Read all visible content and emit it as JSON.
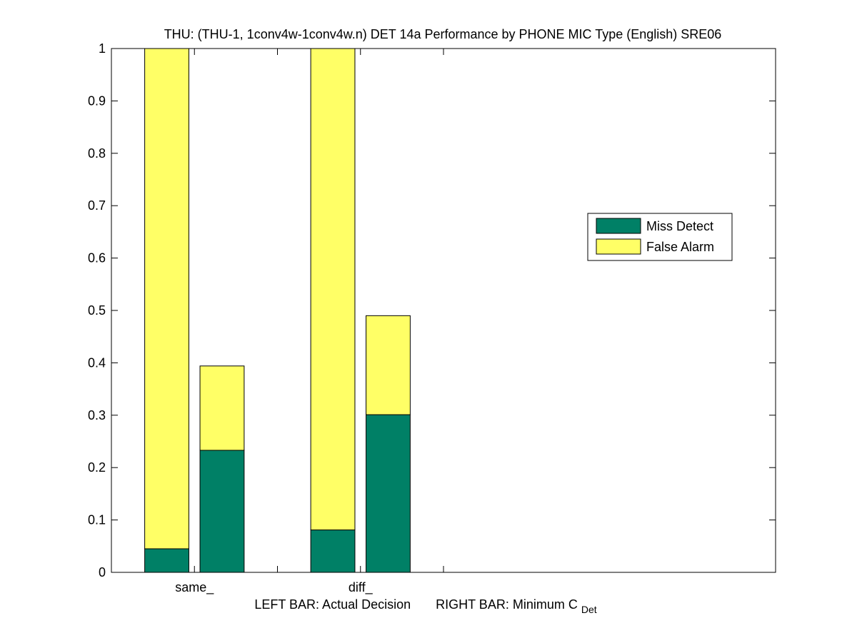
{
  "chart_data": {
    "type": "bar",
    "title": "THU: (THU-1, 1conv4w-1conv4w.n) DET 14a Performance by PHONE MIC Type (English) SRE06",
    "xlabel": {
      "left_text": "LEFT BAR: Actual Decision",
      "right_text": "RIGHT BAR: Minimum C",
      "right_subscript": "Det"
    },
    "ylim": [
      0,
      1
    ],
    "y_ticks": [
      "0",
      "0.1",
      "0.2",
      "0.3",
      "0.4",
      "0.5",
      "0.6",
      "0.7",
      "0.8",
      "0.9",
      "1"
    ],
    "categories": [
      "same_",
      "diff_"
    ],
    "stacked": true,
    "series": [
      {
        "name": "Miss Detect",
        "color": "#008066",
        "actual": [
          0.045,
          0.081
        ],
        "minimum": [
          0.233,
          0.301
        ]
      },
      {
        "name": "False Alarm",
        "color": "#ffff66",
        "actual": [
          0.955,
          0.919
        ],
        "minimum": [
          0.161,
          0.189
        ]
      }
    ],
    "legend_placement": "right",
    "grid": false
  }
}
